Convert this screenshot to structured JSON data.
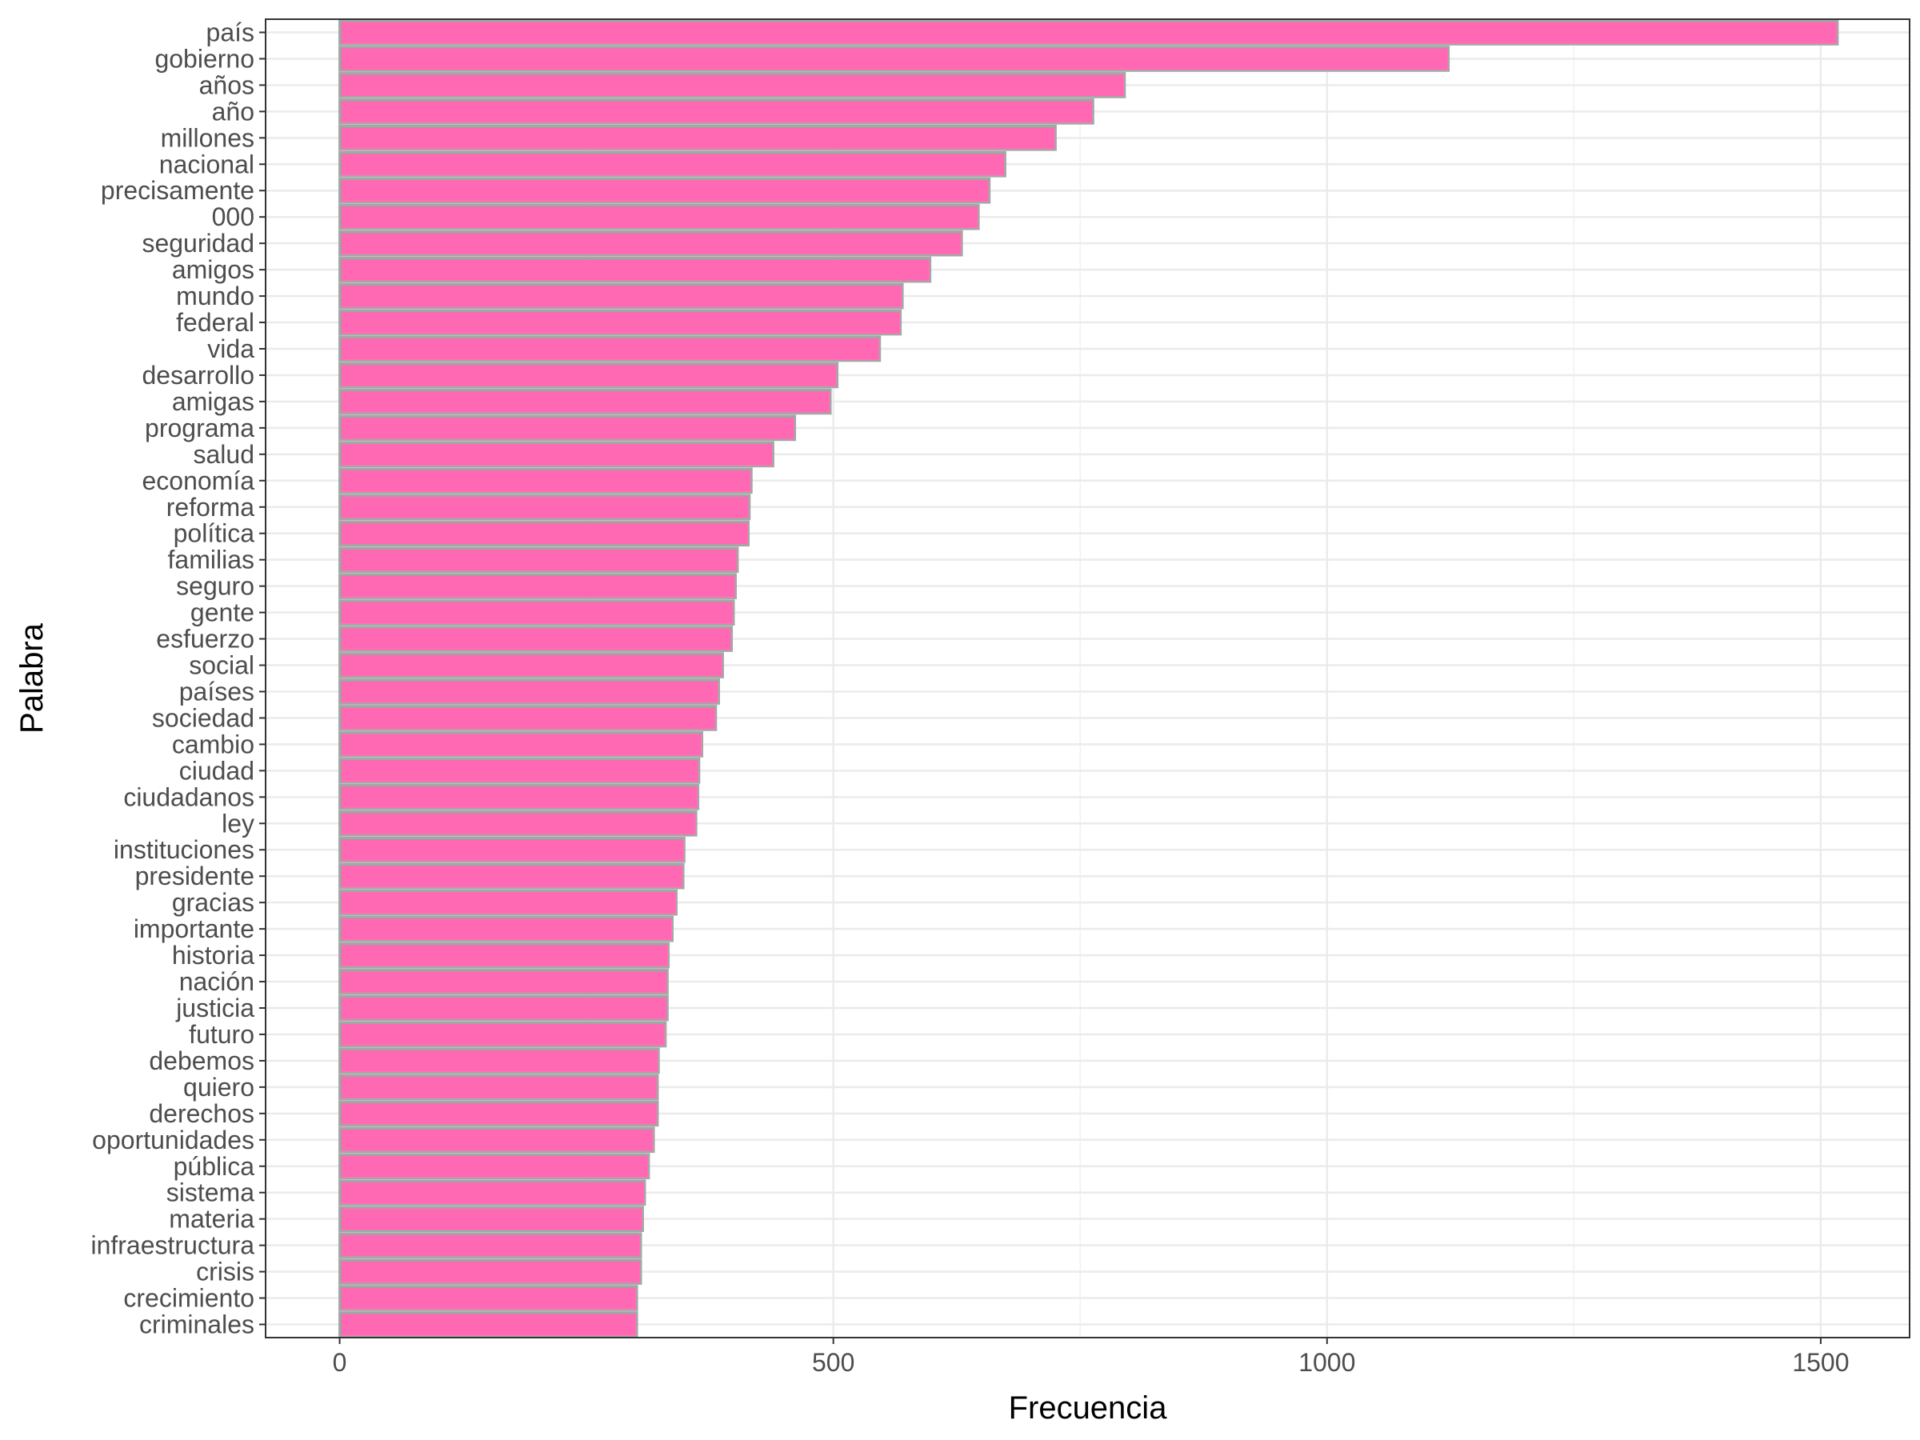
{
  "chart_data": {
    "type": "bar",
    "orientation": "horizontal",
    "xlabel": "Frecuencia",
    "ylabel": "Palabra",
    "xlim": [
      -75,
      1590
    ],
    "xticks": [
      0,
      500,
      1000,
      1500
    ],
    "xtick_labels": [
      "0",
      "500",
      "1000",
      "1500"
    ],
    "grid": true,
    "bar_fill": "#ff69b4",
    "bar_outline": "#a6a6a6",
    "categories": [
      "país",
      "gobierno",
      "años",
      "año",
      "millones",
      "nacional",
      "precisamente",
      "000",
      "seguridad",
      "amigos",
      "mundo",
      "federal",
      "vida",
      "desarrollo",
      "amigas",
      "programa",
      "salud",
      "economía",
      "reforma",
      "política",
      "familias",
      "seguro",
      "gente",
      "esfuerzo",
      "social",
      "países",
      "sociedad",
      "cambio",
      "ciudad",
      "ciudadanos",
      "ley",
      "instituciones",
      "presidente",
      "gracias",
      "importante",
      "historia",
      "nación",
      "justicia",
      "futuro",
      "debemos",
      "quiero",
      "derechos",
      "oportunidades",
      "pública",
      "sistema",
      "materia",
      "infraestructura",
      "crisis",
      "crecimiento",
      "criminales"
    ],
    "values": [
      1517,
      1123,
      795,
      763,
      725,
      674,
      658,
      647,
      630,
      598,
      570,
      568,
      547,
      504,
      497,
      461,
      439,
      417,
      415,
      414,
      403,
      401,
      399,
      397,
      388,
      384,
      381,
      367,
      364,
      363,
      361,
      349,
      348,
      341,
      337,
      333,
      332,
      332,
      330,
      323,
      322,
      322,
      318,
      313,
      309,
      307,
      305,
      305,
      301,
      301
    ]
  }
}
